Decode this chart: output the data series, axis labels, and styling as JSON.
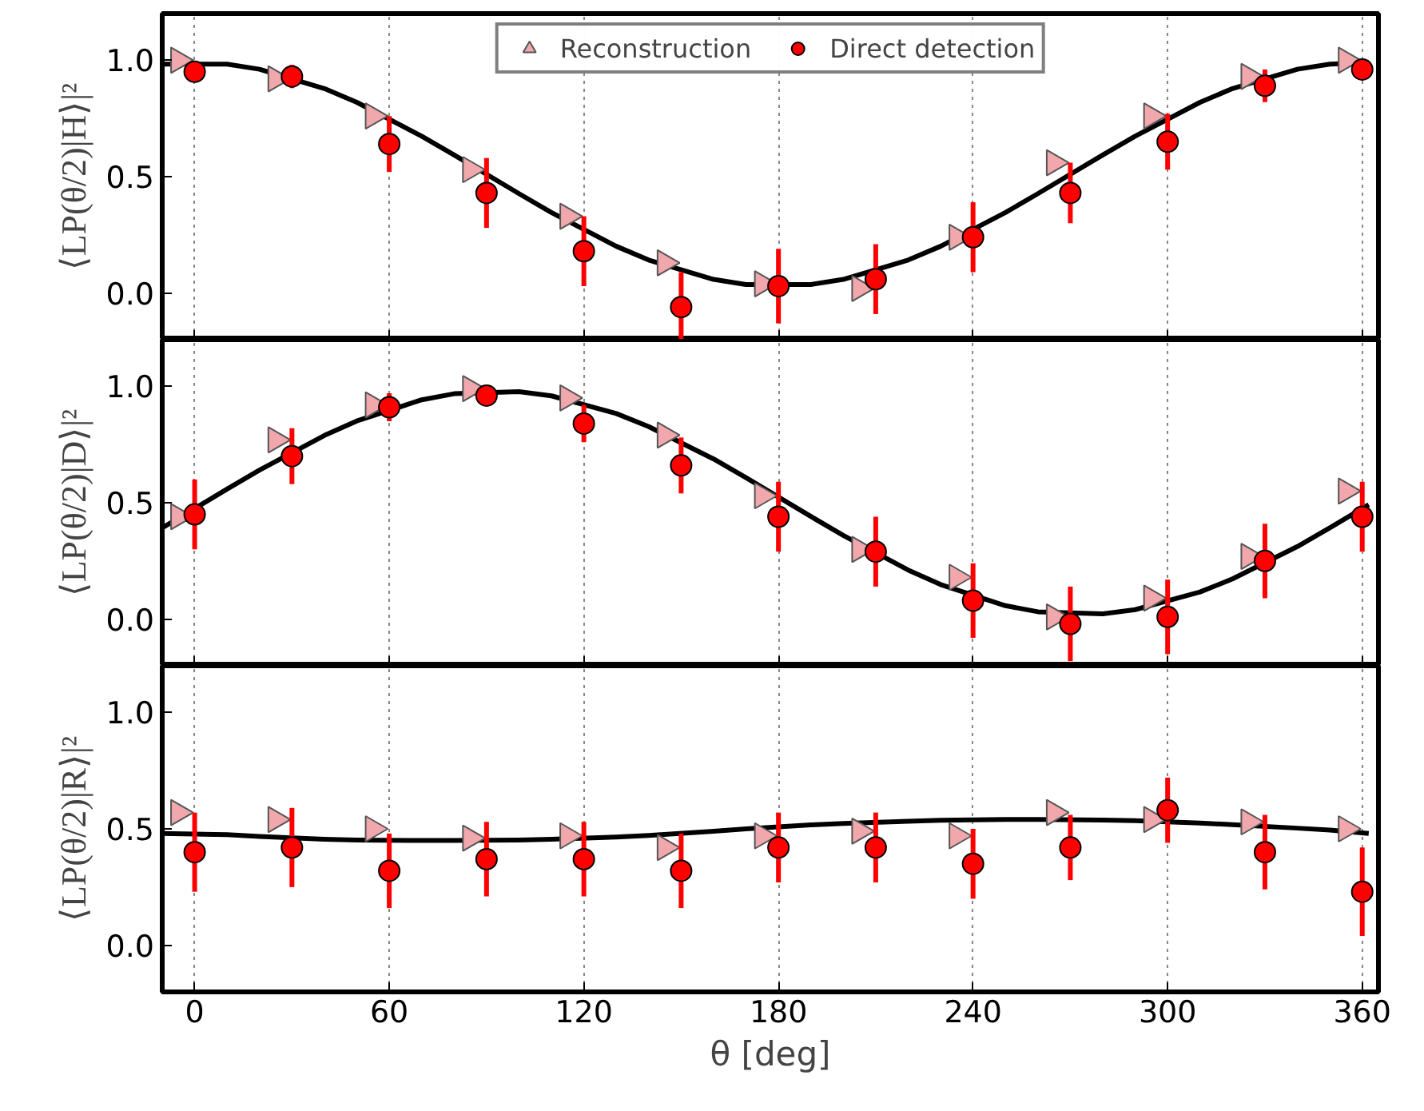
{
  "chart_data": [
    {
      "type": "scatter",
      "ylabel": "⟨LP(θ/2)|H⟩|²",
      "xlim": [
        -10,
        365
      ],
      "ylim": [
        -0.2,
        1.2
      ],
      "xticks": [
        0,
        60,
        120,
        180,
        240,
        300,
        360
      ],
      "yticks": [
        {
          "value": 0,
          "label": "0.0"
        },
        {
          "value": 0.5,
          "label": "0.5"
        },
        {
          "value": 1,
          "label": "1.0"
        }
      ],
      "grid": "x",
      "tick_labels": "y",
      "legend": "top",
      "series": [
        {
          "name": "Reconstruction",
          "type": "scatter",
          "marker": "triangle",
          "color": "#f0a8ad",
          "x": [
            -5,
            25,
            55,
            85,
            115,
            145,
            175,
            205,
            235,
            265,
            295,
            325,
            355
          ],
          "values": [
            1.0,
            0.92,
            0.76,
            0.53,
            0.33,
            0.13,
            0.04,
            0.02,
            0.24,
            0.56,
            0.76,
            0.93,
            1.0
          ]
        },
        {
          "name": "Direct detection",
          "type": "scatter",
          "marker": "circle",
          "color": "#ff0000",
          "x": [
            0,
            30,
            60,
            90,
            120,
            150,
            180,
            210,
            240,
            270,
            300,
            330,
            360
          ],
          "values": [
            0.95,
            0.93,
            0.64,
            0.43,
            0.18,
            -0.06,
            0.03,
            0.06,
            0.24,
            0.43,
            0.65,
            0.89,
            0.96
          ],
          "errors": [
            0.02,
            0.05,
            0.12,
            0.15,
            0.15,
            0.15,
            0.16,
            0.15,
            0.15,
            0.13,
            0.12,
            0.07,
            0.02
          ]
        },
        {
          "type": "line",
          "color": "#000000",
          "x": [
            -10,
            10,
            20,
            40,
            50,
            70,
            80,
            100,
            110,
            130,
            140,
            160,
            170,
            190,
            200,
            220,
            230,
            250,
            260,
            280,
            290,
            310,
            320,
            340,
            350,
            362
          ],
          "values": [
            0.983,
            0.983,
            0.961,
            0.878,
            0.819,
            0.674,
            0.593,
            0.427,
            0.346,
            0.201,
            0.142,
            0.059,
            0.037,
            0.037,
            0.059,
            0.142,
            0.201,
            0.346,
            0.427,
            0.593,
            0.674,
            0.819,
            0.878,
            0.961,
            0.983,
            0.99
          ]
        }
      ]
    },
    {
      "type": "scatter",
      "ylabel": "⟨LP(θ/2)|D⟩|²",
      "xlim": [
        -10,
        365
      ],
      "ylim": [
        -0.2,
        1.2
      ],
      "xticks": [
        0,
        60,
        120,
        180,
        240,
        300,
        360
      ],
      "yticks": [
        {
          "value": 0,
          "label": "0.0"
        },
        {
          "value": 0.5,
          "label": "0.5"
        },
        {
          "value": 1,
          "label": "1.0"
        }
      ],
      "grid": "x",
      "tick_labels": "y",
      "series": [
        {
          "type": "scatter",
          "marker": "triangle",
          "color": "#f0a8ad",
          "x": [
            -5,
            25,
            55,
            85,
            115,
            145,
            175,
            205,
            235,
            265,
            295,
            325,
            355
          ],
          "values": [
            0.44,
            0.77,
            0.92,
            0.99,
            0.95,
            0.79,
            0.53,
            0.3,
            0.18,
            0.01,
            0.09,
            0.27,
            0.55
          ]
        },
        {
          "type": "scatter",
          "marker": "circle",
          "color": "#ff0000",
          "x": [
            0,
            30,
            60,
            90,
            120,
            150,
            180,
            210,
            240,
            270,
            300,
            330,
            360
          ],
          "values": [
            0.45,
            0.7,
            0.91,
            0.96,
            0.84,
            0.66,
            0.44,
            0.29,
            0.08,
            -0.02,
            0.01,
            0.25,
            0.44
          ],
          "errors": [
            0.15,
            0.12,
            0.06,
            0.02,
            0.08,
            0.12,
            0.15,
            0.15,
            0.16,
            0.16,
            0.16,
            0.16,
            0.15
          ]
        },
        {
          "type": "line",
          "color": "#000000",
          "x": [
            -10,
            10,
            20,
            40,
            50,
            70,
            80,
            100,
            110,
            130,
            140,
            160,
            170,
            190,
            200,
            220,
            230,
            250,
            260,
            280,
            290,
            310,
            320,
            340,
            350,
            362
          ],
          "values": [
            0.392,
            0.559,
            0.64,
            0.789,
            0.851,
            0.942,
            0.968,
            0.977,
            0.959,
            0.883,
            0.827,
            0.688,
            0.608,
            0.441,
            0.36,
            0.211,
            0.149,
            0.058,
            0.032,
            0.023,
            0.041,
            0.117,
            0.173,
            0.312,
            0.392,
            0.492
          ]
        }
      ]
    },
    {
      "type": "scatter",
      "ylabel": "⟨LP(θ/2)|R⟩|²",
      "xlabel": "θ [deg]",
      "xlim": [
        -10,
        365
      ],
      "ylim": [
        -0.2,
        1.2
      ],
      "xticks": [
        0,
        60,
        120,
        180,
        240,
        300,
        360
      ],
      "yticks": [
        {
          "value": 0,
          "label": "0.0"
        },
        {
          "value": 0.5,
          "label": "0.5"
        },
        {
          "value": 1,
          "label": "1.0"
        }
      ],
      "grid": "x",
      "series": [
        {
          "type": "scatter",
          "marker": "triangle",
          "color": "#f0a8ad",
          "x": [
            -5,
            25,
            55,
            85,
            115,
            145,
            175,
            205,
            235,
            265,
            295,
            325,
            355
          ],
          "values": [
            0.57,
            0.54,
            0.5,
            0.46,
            0.47,
            0.42,
            0.47,
            0.49,
            0.47,
            0.57,
            0.54,
            0.53,
            0.5
          ]
        },
        {
          "type": "scatter",
          "marker": "circle",
          "color": "#ff0000",
          "x": [
            0,
            30,
            60,
            90,
            120,
            150,
            180,
            210,
            240,
            270,
            300,
            330,
            360
          ],
          "values": [
            0.4,
            0.42,
            0.32,
            0.37,
            0.37,
            0.32,
            0.42,
            0.42,
            0.35,
            0.42,
            0.58,
            0.4,
            0.23
          ],
          "errors": [
            0.17,
            0.17,
            0.16,
            0.16,
            0.16,
            0.16,
            0.15,
            0.15,
            0.15,
            0.14,
            0.14,
            0.16,
            0.19
          ]
        },
        {
          "type": "line",
          "color": "#000000",
          "x": [
            -10,
            10,
            20,
            40,
            50,
            70,
            80,
            100,
            110,
            130,
            140,
            160,
            170,
            190,
            200,
            220,
            230,
            250,
            260,
            280,
            290,
            310,
            320,
            340,
            350,
            362
          ],
          "values": [
            0.48,
            0.475,
            0.467,
            0.455,
            0.452,
            0.45,
            0.45,
            0.452,
            0.455,
            0.465,
            0.472,
            0.49,
            0.5,
            0.517,
            0.523,
            0.533,
            0.537,
            0.54,
            0.54,
            0.538,
            0.535,
            0.525,
            0.518,
            0.503,
            0.495,
            0.48
          ]
        }
      ]
    }
  ]
}
